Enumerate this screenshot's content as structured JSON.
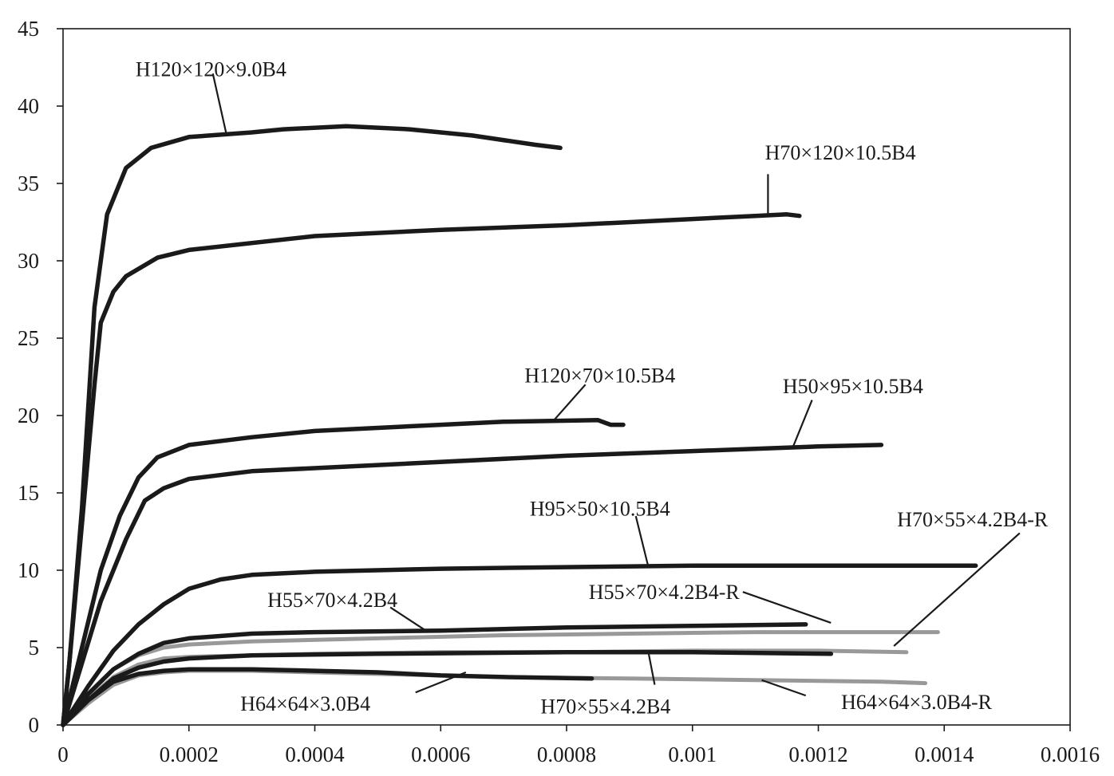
{
  "chart_data": {
    "type": "line",
    "title": "",
    "xlabel": "",
    "ylabel": "",
    "xlim": [
      0,
      0.0016
    ],
    "ylim": [
      0,
      45
    ],
    "grid": false,
    "legend": "none",
    "x_ticks": [
      0,
      0.0002,
      0.0004,
      0.0006,
      0.0008,
      0.001,
      0.0012,
      0.0014,
      0.0016
    ],
    "x_tick_labels": [
      "0",
      "0.0002",
      "0.0004",
      "0.0006",
      "0.0008",
      "0.001",
      "0.0012",
      "0.0014",
      "0.0016"
    ],
    "y_ticks": [
      0,
      5,
      10,
      15,
      20,
      25,
      30,
      35,
      40,
      45
    ],
    "y_tick_labels": [
      "0",
      "5",
      "10",
      "15",
      "20",
      "25",
      "30",
      "35",
      "40",
      "45"
    ],
    "colors": {
      "black": "#1a1a1a",
      "gray": "#999999"
    },
    "series": [
      {
        "name": "H120×120×9.0B4",
        "color": "black",
        "points": [
          [
            0,
            0
          ],
          [
            1e-05,
            4
          ],
          [
            3e-05,
            14
          ],
          [
            5e-05,
            27
          ],
          [
            7e-05,
            33
          ],
          [
            0.0001,
            36
          ],
          [
            0.00014,
            37.3
          ],
          [
            0.0002,
            38
          ],
          [
            0.0003,
            38.3
          ],
          [
            0.00035,
            38.5
          ],
          [
            0.00045,
            38.7
          ],
          [
            0.00055,
            38.5
          ],
          [
            0.00065,
            38.1
          ],
          [
            0.00075,
            37.5
          ],
          [
            0.00079,
            37.3
          ]
        ]
      },
      {
        "name": "H70×120×10.5B4",
        "color": "black",
        "points": [
          [
            0,
            0
          ],
          [
            1e-05,
            4
          ],
          [
            3e-05,
            13
          ],
          [
            5e-05,
            22
          ],
          [
            6e-05,
            26
          ],
          [
            8e-05,
            28
          ],
          [
            0.0001,
            29
          ],
          [
            0.00015,
            30.2
          ],
          [
            0.0002,
            30.7
          ],
          [
            0.0004,
            31.6
          ],
          [
            0.0006,
            32
          ],
          [
            0.0008,
            32.3
          ],
          [
            0.001,
            32.7
          ],
          [
            0.0011,
            32.9
          ],
          [
            0.00115,
            33
          ],
          [
            0.00117,
            32.9
          ]
        ]
      },
      {
        "name": "H120×70×10.5B4",
        "color": "black",
        "points": [
          [
            0,
            0
          ],
          [
            3e-05,
            5
          ],
          [
            6e-05,
            10
          ],
          [
            9e-05,
            13.5
          ],
          [
            0.00012,
            16
          ],
          [
            0.00015,
            17.3
          ],
          [
            0.0002,
            18.1
          ],
          [
            0.0003,
            18.6
          ],
          [
            0.0004,
            19
          ],
          [
            0.0006,
            19.4
          ],
          [
            0.0007,
            19.6
          ],
          [
            0.00085,
            19.7
          ],
          [
            0.00087,
            19.4
          ],
          [
            0.00089,
            19.4
          ]
        ]
      },
      {
        "name": "H50×95×10.5B4",
        "color": "black",
        "points": [
          [
            0,
            0
          ],
          [
            3e-05,
            4
          ],
          [
            6e-05,
            8
          ],
          [
            0.0001,
            12
          ],
          [
            0.00013,
            14.5
          ],
          [
            0.00016,
            15.3
          ],
          [
            0.0002,
            15.9
          ],
          [
            0.0003,
            16.4
          ],
          [
            0.0005,
            16.8
          ],
          [
            0.0008,
            17.4
          ],
          [
            0.001,
            17.7
          ],
          [
            0.0012,
            18
          ],
          [
            0.0013,
            18.1
          ]
        ]
      },
      {
        "name": "H95×50×10.5B4",
        "color": "black",
        "points": [
          [
            0,
            0
          ],
          [
            4e-05,
            2.5
          ],
          [
            8e-05,
            4.8
          ],
          [
            0.00012,
            6.5
          ],
          [
            0.00016,
            7.8
          ],
          [
            0.0002,
            8.8
          ],
          [
            0.00025,
            9.4
          ],
          [
            0.0003,
            9.7
          ],
          [
            0.0004,
            9.9
          ],
          [
            0.0006,
            10.1
          ],
          [
            0.0008,
            10.2
          ],
          [
            0.001,
            10.3
          ],
          [
            0.0012,
            10.3
          ],
          [
            0.00145,
            10.3
          ]
        ]
      },
      {
        "name": "H55×70×4.2B4",
        "color": "black",
        "points": [
          [
            0,
            0
          ],
          [
            4e-05,
            2
          ],
          [
            8e-05,
            3.6
          ],
          [
            0.00012,
            4.6
          ],
          [
            0.00016,
            5.3
          ],
          [
            0.0002,
            5.6
          ],
          [
            0.0003,
            5.9
          ],
          [
            0.0004,
            6
          ],
          [
            0.0006,
            6.1
          ],
          [
            0.0008,
            6.3
          ],
          [
            0.001,
            6.4
          ],
          [
            0.00118,
            6.5
          ]
        ]
      },
      {
        "name": "H55×70×4.2B4-R",
        "color": "gray",
        "points": [
          [
            0,
            0
          ],
          [
            4e-05,
            2
          ],
          [
            8e-05,
            3.6
          ],
          [
            0.00012,
            4.5
          ],
          [
            0.00016,
            5
          ],
          [
            0.0002,
            5.2
          ],
          [
            0.0003,
            5.4
          ],
          [
            0.0005,
            5.6
          ],
          [
            0.0007,
            5.8
          ],
          [
            0.0009,
            5.9
          ],
          [
            0.0011,
            6
          ],
          [
            0.0013,
            6
          ],
          [
            0.00139,
            6
          ]
        ]
      },
      {
        "name": "H70×55×4.2B4",
        "color": "black",
        "points": [
          [
            0,
            0
          ],
          [
            4e-05,
            1.6
          ],
          [
            8e-05,
            3
          ],
          [
            0.00012,
            3.7
          ],
          [
            0.00016,
            4.1
          ],
          [
            0.0002,
            4.3
          ],
          [
            0.0003,
            4.5
          ],
          [
            0.0005,
            4.6
          ],
          [
            0.0008,
            4.7
          ],
          [
            0.001,
            4.7
          ],
          [
            0.00122,
            4.6
          ]
        ]
      },
      {
        "name": "H70×55×4.2B4-R",
        "color": "gray",
        "points": [
          [
            0,
            0
          ],
          [
            4e-05,
            1.7
          ],
          [
            8e-05,
            3.1
          ],
          [
            0.00012,
            3.9
          ],
          [
            0.00016,
            4.3
          ],
          [
            0.0002,
            4.4
          ],
          [
            0.0004,
            4.6
          ],
          [
            0.0006,
            4.7
          ],
          [
            0.0008,
            4.7
          ],
          [
            0.001,
            4.8
          ],
          [
            0.0012,
            4.8
          ],
          [
            0.00134,
            4.7
          ]
        ]
      },
      {
        "name": "H64×64×3.0B4",
        "color": "black",
        "points": [
          [
            0,
            0
          ],
          [
            4e-05,
            1.6
          ],
          [
            8e-05,
            2.8
          ],
          [
            0.00012,
            3.3
          ],
          [
            0.00016,
            3.5
          ],
          [
            0.0002,
            3.6
          ],
          [
            0.0003,
            3.6
          ],
          [
            0.0004,
            3.5
          ],
          [
            0.0005,
            3.4
          ],
          [
            0.0006,
            3.2
          ],
          [
            0.0007,
            3.1
          ],
          [
            0.00084,
            3
          ]
        ]
      },
      {
        "name": "H64×64×3.0B4-R",
        "color": "gray",
        "points": [
          [
            0,
            0
          ],
          [
            4e-05,
            1.4
          ],
          [
            8e-05,
            2.6
          ],
          [
            0.00012,
            3.2
          ],
          [
            0.00016,
            3.4
          ],
          [
            0.0002,
            3.5
          ],
          [
            0.0003,
            3.5
          ],
          [
            0.0005,
            3.3
          ],
          [
            0.0007,
            3.1
          ],
          [
            0.0009,
            3
          ],
          [
            0.0011,
            2.9
          ],
          [
            0.0013,
            2.8
          ],
          [
            0.00137,
            2.7
          ]
        ]
      }
    ],
    "annotations": [
      {
        "text": "H120×120×9.0B4",
        "x": 0.000235,
        "y": 42.4,
        "anchor_x": 0.00026,
        "anchor_y": 38.1,
        "tx": 0.000238,
        "ty": 42.1
      },
      {
        "text": "H70×120×10.5B4",
        "x": 0.001235,
        "y": 37.0,
        "anchor_x": 0.00112,
        "anchor_y": 33.0,
        "tx": 0.00112,
        "ty": 35.6
      },
      {
        "text": "H120×70×10.5B4",
        "x": 0.000853,
        "y": 22.6,
        "anchor_x": 0.00078,
        "anchor_y": 19.7,
        "tx": 0.00083,
        "ty": 22.0
      },
      {
        "text": "H50×95×10.5B4",
        "x": 0.001255,
        "y": 21.9,
        "anchor_x": 0.00116,
        "anchor_y": 18.0,
        "tx": 0.00119,
        "ty": 21.0
      },
      {
        "text": "H95×50×10.5B4",
        "x": 0.000853,
        "y": 14.0,
        "anchor_x": 0.00093,
        "anchor_y": 10.2,
        "tx": 0.00091,
        "ty": 13.5
      },
      {
        "text": "H70×55×4.2B4-R",
        "x": 0.001445,
        "y": 13.3,
        "anchor_x": 0.00132,
        "anchor_y": 5.1,
        "tx": 0.00152,
        "ty": 12.4
      },
      {
        "text": "H55×70×4.2B4-R",
        "x": 0.000955,
        "y": 8.6,
        "anchor_x": 0.00122,
        "anchor_y": 6.6,
        "tx": 0.00108,
        "ty": 8.6
      },
      {
        "text": "H55×70×4.2B4",
        "x": 0.000428,
        "y": 8.1,
        "anchor_x": 0.00058,
        "anchor_y": 6.0,
        "tx": 0.00052,
        "ty": 7.6
      },
      {
        "text": "H64×64×3.0B4",
        "x": 0.000385,
        "y": 1.4,
        "anchor_x": 0.00064,
        "anchor_y": 3.4,
        "tx": 0.00056,
        "ty": 2.1
      },
      {
        "text": "H70×55×4.2B4",
        "x": 0.000862,
        "y": 1.2,
        "anchor_x": 0.00093,
        "anchor_y": 4.7,
        "tx": 0.00094,
        "ty": 2.6
      },
      {
        "text": "H64×64×3.0B4-R",
        "x": 0.001356,
        "y": 1.5,
        "anchor_x": 0.00111,
        "anchor_y": 2.9,
        "tx": 0.00118,
        "ty": 1.9
      }
    ]
  }
}
